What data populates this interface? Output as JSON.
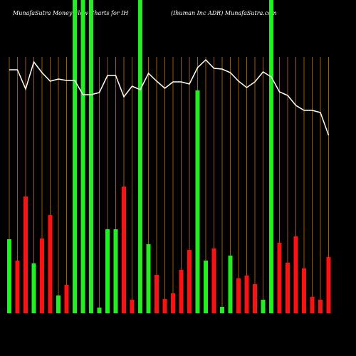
{
  "chart_data": {
    "type": "bar-line",
    "title": "MunafaSutra  Money Flow  Charts for IH",
    "subtitle": "(Ihuman  Inc ADR) MunafaSutra.com",
    "categories": [
      null,
      null,
      null,
      null,
      null,
      null,
      null,
      null,
      null,
      null,
      null,
      null,
      null,
      null,
      null,
      null,
      null,
      null,
      null,
      null,
      null,
      null,
      null,
      null,
      null,
      null,
      null,
      null,
      null,
      null,
      null,
      null,
      null,
      null,
      null,
      null,
      null,
      null,
      null,
      null
    ],
    "ylim": [
      0,
      440
    ],
    "series": [
      {
        "name": "money flow",
        "colors": [
          "#22ee22",
          "#ff1111",
          "#ff1111",
          "#22ee22",
          "#ff1111",
          "#ff1111",
          "#22ee22",
          "#ff1111",
          "#22ee22",
          "#22ee22",
          "#22ee22",
          "#22ee22",
          "#22ee22",
          "#22ee22",
          "#ff1111",
          "#ff1111",
          "#22ee22",
          "#22ee22",
          "#ff1111",
          "#ff1111",
          "#ff1111",
          "#ff1111",
          "#ff1111",
          "#22ee22",
          "#22ee22",
          "#ff1111",
          "#22ee22",
          "#22ee22",
          "#ff1111",
          "#ff1111",
          "#ff1111",
          "#22ee22",
          "#22ee22",
          "#ff1111",
          "#ff1111",
          "#ff1111",
          "#ff1111",
          "#ff1111",
          "#ff1111",
          "#ff1111"
        ],
        "values": [
          104,
          74,
          164,
          70,
          105,
          138,
          25,
          40,
          440,
          440,
          440,
          8,
          118,
          118,
          178,
          19,
          440,
          97,
          54,
          20,
          28,
          61,
          89,
          313,
          74,
          91,
          9,
          81,
          49,
          53,
          41,
          19,
          440,
          99,
          71,
          108,
          63,
          23,
          19,
          79
        ]
      },
      {
        "name": "price",
        "color": "#ffffff",
        "values": [
          342,
          342,
          315,
          353,
          338,
          326,
          329,
          327,
          327,
          307,
          307,
          310,
          334,
          334,
          304,
          319,
          314,
          337,
          326,
          316,
          325,
          325,
          322,
          345,
          356,
          344,
          343,
          338,
          326,
          317,
          325,
          339,
          332,
          311,
          306,
          292,
          285,
          285,
          282,
          250
        ]
      }
    ]
  }
}
